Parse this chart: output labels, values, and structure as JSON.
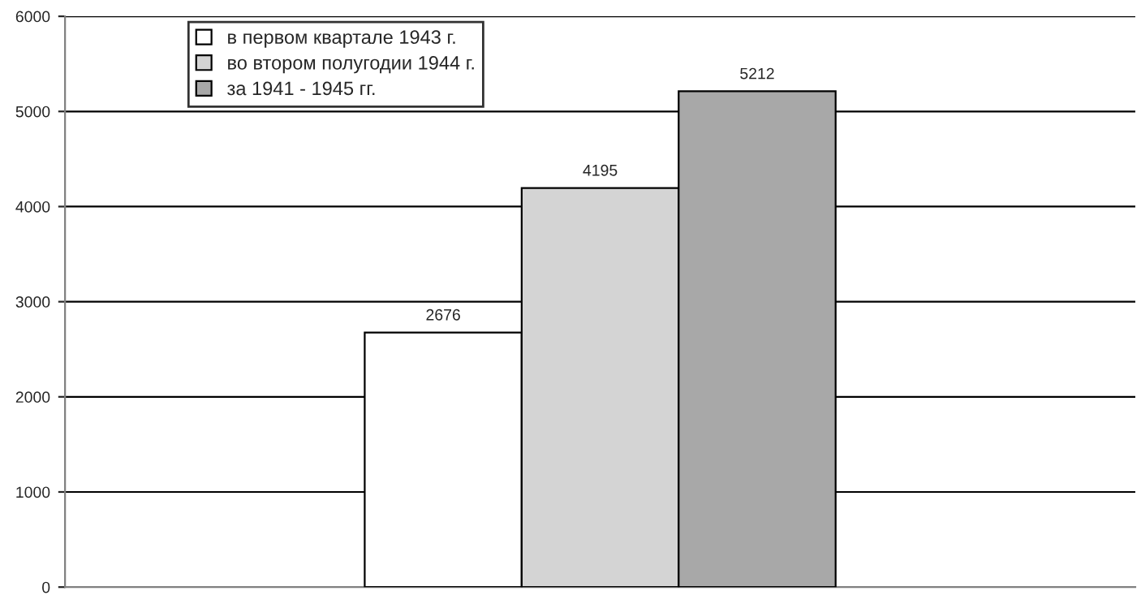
{
  "chart_data": {
    "type": "bar",
    "categories": [
      null
    ],
    "series": [
      {
        "name": "в первом квартале 1943 г.",
        "color": "#ffffff",
        "values": [
          2676
        ]
      },
      {
        "name": "во втором полугодии 1944 г.",
        "color": "#d4d4d4",
        "values": [
          4195
        ]
      },
      {
        "name": "за 1941 - 1945 гг.",
        "color": "#a8a8a8",
        "values": [
          5212
        ]
      }
    ],
    "ylim": [
      0,
      6000
    ],
    "yticks": [
      0,
      1000,
      2000,
      3000,
      4000,
      5000,
      6000
    ],
    "grid": "y",
    "legend": "top left",
    "data_labels": true,
    "tick_labels": "y"
  }
}
